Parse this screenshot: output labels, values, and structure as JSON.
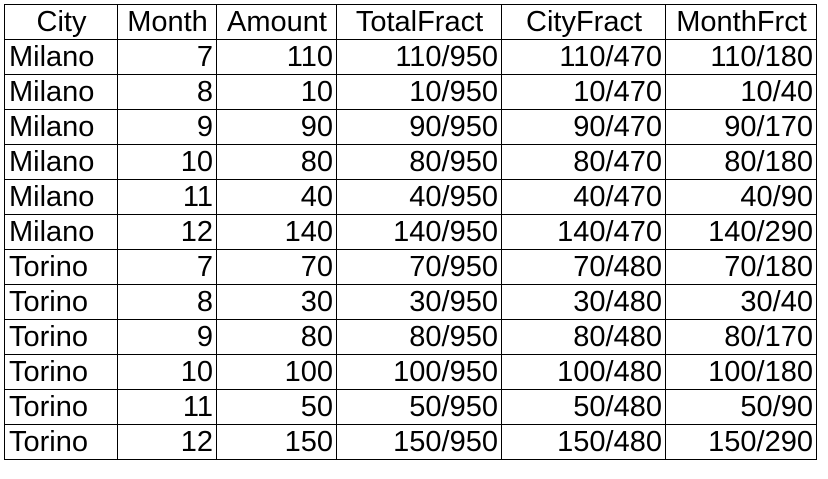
{
  "table": {
    "headers": [
      "City",
      "Month",
      "Amount",
      "TotalFract",
      "CityFract",
      "MonthFrct"
    ],
    "rows": [
      [
        "Milano",
        "7",
        "110",
        "110/950",
        "110/470",
        "110/180"
      ],
      [
        "Milano",
        "8",
        "10",
        "10/950",
        "10/470",
        "10/40"
      ],
      [
        "Milano",
        "9",
        "90",
        "90/950",
        "90/470",
        "90/170"
      ],
      [
        "Milano",
        "10",
        "80",
        "80/950",
        "80/470",
        "80/180"
      ],
      [
        "Milano",
        "11",
        "40",
        "40/950",
        "40/470",
        "40/90"
      ],
      [
        "Milano",
        "12",
        "140",
        "140/950",
        "140/470",
        "140/290"
      ],
      [
        "Torino",
        "7",
        "70",
        "70/950",
        "70/480",
        "70/180"
      ],
      [
        "Torino",
        "8",
        "30",
        "30/950",
        "30/480",
        "30/40"
      ],
      [
        "Torino",
        "9",
        "80",
        "80/950",
        "80/480",
        "80/170"
      ],
      [
        "Torino",
        "10",
        "100",
        "100/950",
        "100/480",
        "100/180"
      ],
      [
        "Torino",
        "11",
        "50",
        "50/950",
        "50/480",
        "50/90"
      ],
      [
        "Torino",
        "12",
        "150",
        "150/950",
        "150/480",
        "150/290"
      ]
    ]
  }
}
